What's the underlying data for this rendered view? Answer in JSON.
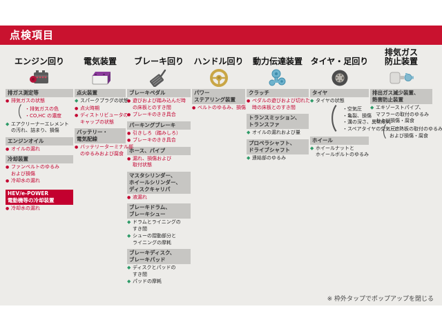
{
  "title": "点検項目",
  "note": "※ 枠外タップでポップアップを閉じる",
  "bullets": {
    "red": "●",
    "green": "◆",
    "paren": "（"
  },
  "colors": {
    "accent_red": "#C3002F",
    "titlebar_red": "#C9122F",
    "section_header_gray": "#C7C6C3",
    "check_green": "#2D9A67",
    "card_background": "#EDECE9"
  },
  "columns": [
    {
      "label_lines": [
        "エンジン回り"
      ],
      "icon": "engine-icon",
      "sections": [
        {
          "type": "header",
          "lines": [
            "排ガス測定等"
          ]
        },
        {
          "type": "item",
          "style": "red",
          "lines": [
            "排気ガスの状態"
          ]
        },
        {
          "type": "paren",
          "style": "red",
          "lines": [
            "・排気ガスの色",
            "・CO,HC の濃度"
          ]
        },
        {
          "type": "item",
          "style": "green",
          "lines": [
            "エアクリーナーエレメント",
            "の汚れ、詰まり、損傷"
          ]
        },
        {
          "type": "header",
          "lines": [
            "エンジンオイル"
          ]
        },
        {
          "type": "item",
          "style": "red",
          "lines": [
            "オイルの漏れ"
          ]
        },
        {
          "type": "header",
          "lines": [
            "冷却装置"
          ]
        },
        {
          "type": "item",
          "style": "red",
          "lines": [
            "ファンベルトのゆるみ",
            "および損傷"
          ]
        },
        {
          "type": "item",
          "style": "red",
          "lines": [
            "冷却水の漏れ"
          ]
        },
        {
          "type": "header-red",
          "lines": [
            "HEV/e-POWER",
            "電動機等の冷却装置"
          ]
        },
        {
          "type": "item",
          "style": "red",
          "lines": [
            "冷却水の漏れ"
          ]
        }
      ]
    },
    {
      "label_lines": [
        "電気装置"
      ],
      "icon": "battery-icon",
      "sections": [
        {
          "type": "header",
          "lines": [
            "点火装置"
          ]
        },
        {
          "type": "item",
          "style": "green",
          "lines": [
            "スパークプラグの状態"
          ]
        },
        {
          "type": "item",
          "style": "red",
          "lines": [
            "点火時期"
          ]
        },
        {
          "type": "item",
          "style": "red",
          "lines": [
            "ディストリビュータの",
            "キャップの状態"
          ]
        },
        {
          "type": "header",
          "lines": [
            "バッテリー・",
            "電気配線"
          ]
        },
        {
          "type": "item",
          "style": "red",
          "lines": [
            "バッテリーターミナル部",
            "のゆるみおよび腐食"
          ]
        }
      ]
    },
    {
      "label_lines": [
        "ブレーキ回り"
      ],
      "icon": "brake-pedal-icon",
      "sections": [
        {
          "type": "header",
          "lines": [
            "ブレーキペダル"
          ]
        },
        {
          "type": "item",
          "style": "red",
          "lines": [
            "遊びおよび踏み込んだ時",
            "の床板とのすき間"
          ]
        },
        {
          "type": "item",
          "style": "red",
          "lines": [
            "ブレーキのきき具合"
          ]
        },
        {
          "type": "header",
          "lines": [
            "パーキングブレーキ"
          ]
        },
        {
          "type": "item",
          "style": "red",
          "lines": [
            "引きしろ（踏みしろ）"
          ]
        },
        {
          "type": "item",
          "style": "red",
          "lines": [
            "ブレーキのきき具合"
          ]
        },
        {
          "type": "header",
          "lines": [
            "ホース、パイプ"
          ]
        },
        {
          "type": "item",
          "style": "red",
          "lines": [
            "漏れ、損傷および",
            "取付状態"
          ]
        },
        {
          "type": "header",
          "lines": [
            "マスタシリンダー、",
            "ホイールシリンダー、",
            "ディスクキャリパ"
          ]
        },
        {
          "type": "item",
          "style": "red",
          "lines": [
            "液漏れ"
          ]
        },
        {
          "type": "header",
          "lines": [
            "ブレーキドラム、",
            "ブレーキシュー"
          ]
        },
        {
          "type": "item",
          "style": "green",
          "lines": [
            "ドラムとライニングの",
            "すき間"
          ]
        },
        {
          "type": "item",
          "style": "green",
          "lines": [
            "シューの摺動部分と",
            "ライニングの摩耗"
          ]
        },
        {
          "type": "header",
          "lines": [
            "ブレーキディスク、",
            "ブレーキパッド"
          ]
        },
        {
          "type": "item",
          "style": "green",
          "lines": [
            "ディスクとパッドの",
            "すき間"
          ]
        },
        {
          "type": "item",
          "style": "green",
          "lines": [
            "パッドの摩耗"
          ]
        }
      ]
    },
    {
      "label_lines": [
        "ハンドル回り"
      ],
      "icon": "steering-wheel-icon",
      "sections": [
        {
          "type": "header",
          "lines": [
            "パワー",
            "ステアリング装置"
          ]
        },
        {
          "type": "item",
          "style": "red",
          "lines": [
            "ベルトのゆるみ、損傷"
          ]
        }
      ]
    },
    {
      "label_lines": [
        "動力伝達装置"
      ],
      "icon": "transmission-icon",
      "sections": [
        {
          "type": "header",
          "lines": [
            "クラッチ"
          ]
        },
        {
          "type": "item",
          "style": "red",
          "lines": [
            "ペダルの遊びおよび切れた",
            "時の床板とのすき間"
          ]
        },
        {
          "type": "header",
          "lines": [
            "トランスミッション、",
            "トランスファ"
          ]
        },
        {
          "type": "item",
          "style": "green",
          "lines": [
            "オイルの漏れおよび量"
          ]
        },
        {
          "type": "header",
          "lines": [
            "プロペラシャフト、",
            "ドライブシャフト"
          ]
        },
        {
          "type": "item",
          "style": "green",
          "lines": [
            "連結部のゆるみ"
          ]
        }
      ]
    },
    {
      "label_lines": [
        "タイヤ・足回り"
      ],
      "icon": "tire-icon",
      "sections": [
        {
          "type": "header",
          "lines": [
            "タイヤ"
          ]
        },
        {
          "type": "item",
          "style": "green",
          "lines": [
            "タイヤの状態"
          ]
        },
        {
          "type": "paren",
          "style": "black",
          "lines": [
            "・空気圧",
            "・亀裂、損傷",
            "・溝の深さ、異常摩耗",
            "・スペアタイヤの空気圧"
          ]
        },
        {
          "type": "header",
          "lines": [
            "ホイール"
          ]
        },
        {
          "type": "item",
          "style": "green",
          "lines": [
            "ホイールナットと",
            "ホイールボルトのゆるみ"
          ]
        }
      ]
    },
    {
      "label_lines": [
        "排気ガス",
        "防止装置"
      ],
      "icon": "muffler-icon",
      "sections": [
        {
          "type": "header",
          "lines": [
            "排出ガス減少装置、",
            "熱害防止装置"
          ]
        },
        {
          "type": "item",
          "style": "green",
          "lines": [
            "エキゾーストパイプ、",
            "マフラーの取付のゆるみ",
            "および損傷・腐食"
          ]
        },
        {
          "type": "paren",
          "style": "black",
          "lines": [
            "・遮熱板の取付のゆるみ",
            "および損傷・腐食"
          ]
        }
      ]
    }
  ]
}
